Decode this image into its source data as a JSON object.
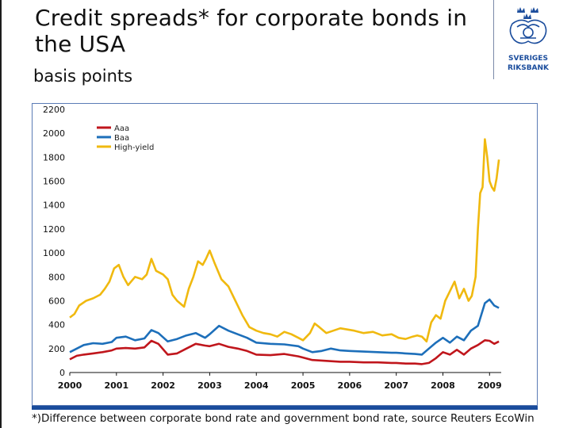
{
  "title": "Credit spreads* for corporate bonds in the USA",
  "subtitle": "basis points",
  "footnote": "*)Difference between corporate bond rate and government bond rate, source Reuters EcoWin",
  "logo": {
    "icon": "sveriges-riksbank-logo",
    "text_line1": "SVERIGES",
    "text_line2": "RIKSBANK",
    "color": "#1a4c9c"
  },
  "chart_data": {
    "type": "line",
    "title": "Credit spreads* for corporate bonds in the USA",
    "ylabel": "basis points",
    "xlabel": "",
    "ylim": [
      0,
      2200
    ],
    "xlim": [
      2000,
      2009.25
    ],
    "y_ticks": [
      0,
      200,
      400,
      600,
      800,
      1000,
      1200,
      1400,
      1600,
      1800,
      2000,
      2200
    ],
    "x_ticks": [
      "2000",
      "2001",
      "2002",
      "2003",
      "2004",
      "2005",
      "2006",
      "2007",
      "2008",
      "2009"
    ],
    "grid": false,
    "legend_position": "top-left",
    "series": [
      {
        "name": "Aaa",
        "color": "#c0161c",
        "x": [
          2000.0,
          2000.15,
          2000.3,
          2000.5,
          2000.7,
          2000.9,
          2001.0,
          2001.2,
          2001.4,
          2001.6,
          2001.75,
          2001.9,
          2002.1,
          2002.3,
          2002.5,
          2002.7,
          2002.9,
          2003.0,
          2003.2,
          2003.4,
          2003.6,
          2003.8,
          2004.0,
          2004.3,
          2004.6,
          2004.9,
          2005.0,
          2005.2,
          2005.4,
          2005.6,
          2005.8,
          2006.0,
          2006.3,
          2006.6,
          2006.9,
          2007.0,
          2007.2,
          2007.4,
          2007.55,
          2007.7,
          2007.85,
          2008.0,
          2008.15,
          2008.3,
          2008.45,
          2008.6,
          2008.75,
          2008.9,
          2009.0,
          2009.1,
          2009.2
        ],
        "values": [
          110,
          140,
          150,
          160,
          170,
          185,
          200,
          205,
          200,
          210,
          265,
          240,
          150,
          160,
          200,
          240,
          225,
          220,
          240,
          215,
          200,
          180,
          150,
          145,
          155,
          135,
          125,
          105,
          100,
          95,
          90,
          90,
          85,
          85,
          80,
          80,
          75,
          75,
          70,
          80,
          120,
          170,
          150,
          190,
          150,
          200,
          230,
          270,
          265,
          240,
          260
        ]
      },
      {
        "name": "Baa",
        "color": "#1d6fba",
        "x": [
          2000.0,
          2000.15,
          2000.3,
          2000.5,
          2000.7,
          2000.9,
          2001.0,
          2001.2,
          2001.4,
          2001.6,
          2001.75,
          2001.9,
          2002.1,
          2002.3,
          2002.5,
          2002.7,
          2002.9,
          2003.0,
          2003.2,
          2003.4,
          2003.6,
          2003.8,
          2004.0,
          2004.3,
          2004.6,
          2004.9,
          2005.0,
          2005.2,
          2005.4,
          2005.6,
          2005.8,
          2006.0,
          2006.3,
          2006.6,
          2006.9,
          2007.0,
          2007.2,
          2007.4,
          2007.55,
          2007.7,
          2007.85,
          2008.0,
          2008.15,
          2008.3,
          2008.45,
          2008.6,
          2008.75,
          2008.9,
          2009.0,
          2009.1,
          2009.2
        ],
        "values": [
          170,
          200,
          230,
          245,
          240,
          255,
          290,
          300,
          270,
          285,
          355,
          330,
          260,
          280,
          310,
          330,
          290,
          320,
          390,
          350,
          320,
          290,
          250,
          240,
          235,
          220,
          200,
          170,
          180,
          200,
          185,
          180,
          175,
          170,
          165,
          165,
          160,
          155,
          150,
          200,
          250,
          290,
          250,
          300,
          270,
          350,
          390,
          580,
          610,
          560,
          540
        ]
      },
      {
        "name": "High-yield",
        "color": "#f0b90f",
        "x": [
          2000.0,
          2000.1,
          2000.2,
          2000.35,
          2000.5,
          2000.65,
          2000.75,
          2000.85,
          2000.95,
          2001.05,
          2001.15,
          2001.25,
          2001.4,
          2001.55,
          2001.65,
          2001.75,
          2001.85,
          2002.0,
          2002.1,
          2002.2,
          2002.3,
          2002.45,
          2002.55,
          2002.65,
          2002.75,
          2002.85,
          2002.92,
          2003.0,
          2003.1,
          2003.25,
          2003.4,
          2003.55,
          2003.7,
          2003.85,
          2004.0,
          2004.15,
          2004.3,
          2004.45,
          2004.6,
          2004.75,
          2004.9,
          2005.0,
          2005.15,
          2005.25,
          2005.35,
          2005.5,
          2005.65,
          2005.8,
          2005.95,
          2006.1,
          2006.3,
          2006.5,
          2006.7,
          2006.9,
          2007.05,
          2007.2,
          2007.35,
          2007.45,
          2007.55,
          2007.65,
          2007.75,
          2007.85,
          2007.95,
          2008.05,
          2008.15,
          2008.25,
          2008.35,
          2008.45,
          2008.55,
          2008.62,
          2008.7,
          2008.75,
          2008.8,
          2008.85,
          2008.9,
          2008.95,
          2009.0,
          2009.05,
          2009.1,
          2009.15,
          2009.2
        ],
        "values": [
          460,
          490,
          560,
          600,
          620,
          650,
          700,
          760,
          870,
          900,
          800,
          730,
          800,
          780,
          820,
          950,
          850,
          820,
          780,
          650,
          600,
          550,
          700,
          800,
          930,
          900,
          950,
          1020,
          920,
          780,
          720,
          600,
          480,
          380,
          350,
          330,
          320,
          300,
          340,
          320,
          290,
          270,
          330,
          410,
          380,
          330,
          350,
          370,
          360,
          350,
          330,
          340,
          310,
          320,
          290,
          280,
          300,
          310,
          300,
          260,
          420,
          480,
          450,
          600,
          680,
          760,
          620,
          700,
          600,
          640,
          800,
          1200,
          1500,
          1550,
          1950,
          1800,
          1600,
          1550,
          1520,
          1620,
          1780
        ]
      }
    ]
  }
}
